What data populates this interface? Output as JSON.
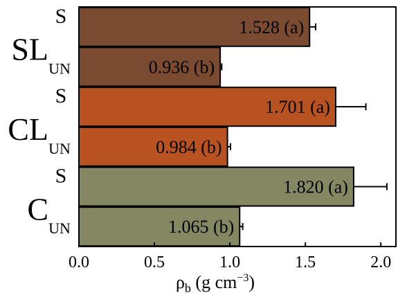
{
  "chart_data": {
    "type": "bar",
    "orientation": "horizontal",
    "title": "",
    "xlabel": "ρ",
    "xlabel_sub": "b",
    "xlabel_unit_prefix": " (g cm",
    "xlabel_unit_sup": "−3",
    "xlabel_unit_suffix": ")",
    "xlim": [
      0,
      2.1
    ],
    "xticks": [
      0.0,
      0.5,
      1.0,
      1.5,
      2.0
    ],
    "xtick_labels": [
      "0.0",
      "0.5",
      "1.0",
      "1.5",
      "2.0"
    ],
    "grid": false,
    "groups": [
      {
        "name": "SL",
        "color": "#7a4a31",
        "bars": [
          {
            "category": "S",
            "value": 1.528,
            "error": 0.04,
            "label": "1.528 (a)"
          },
          {
            "category": "UN",
            "value": 0.936,
            "error": 0.01,
            "label": "0.936 (b)"
          }
        ]
      },
      {
        "name": "CL",
        "color": "#b85221",
        "bars": [
          {
            "category": "S",
            "value": 1.701,
            "error": 0.2,
            "label": "1.701 (a)"
          },
          {
            "category": "UN",
            "value": 0.984,
            "error": 0.02,
            "label": "0.984 (b)"
          }
        ]
      },
      {
        "name": "C",
        "color": "#858662",
        "bars": [
          {
            "category": "S",
            "value": 1.82,
            "error": 0.22,
            "label": "1.820 (a)"
          },
          {
            "category": "UN",
            "value": 1.065,
            "error": 0.02,
            "label": "1.065 (b)"
          }
        ]
      }
    ]
  }
}
